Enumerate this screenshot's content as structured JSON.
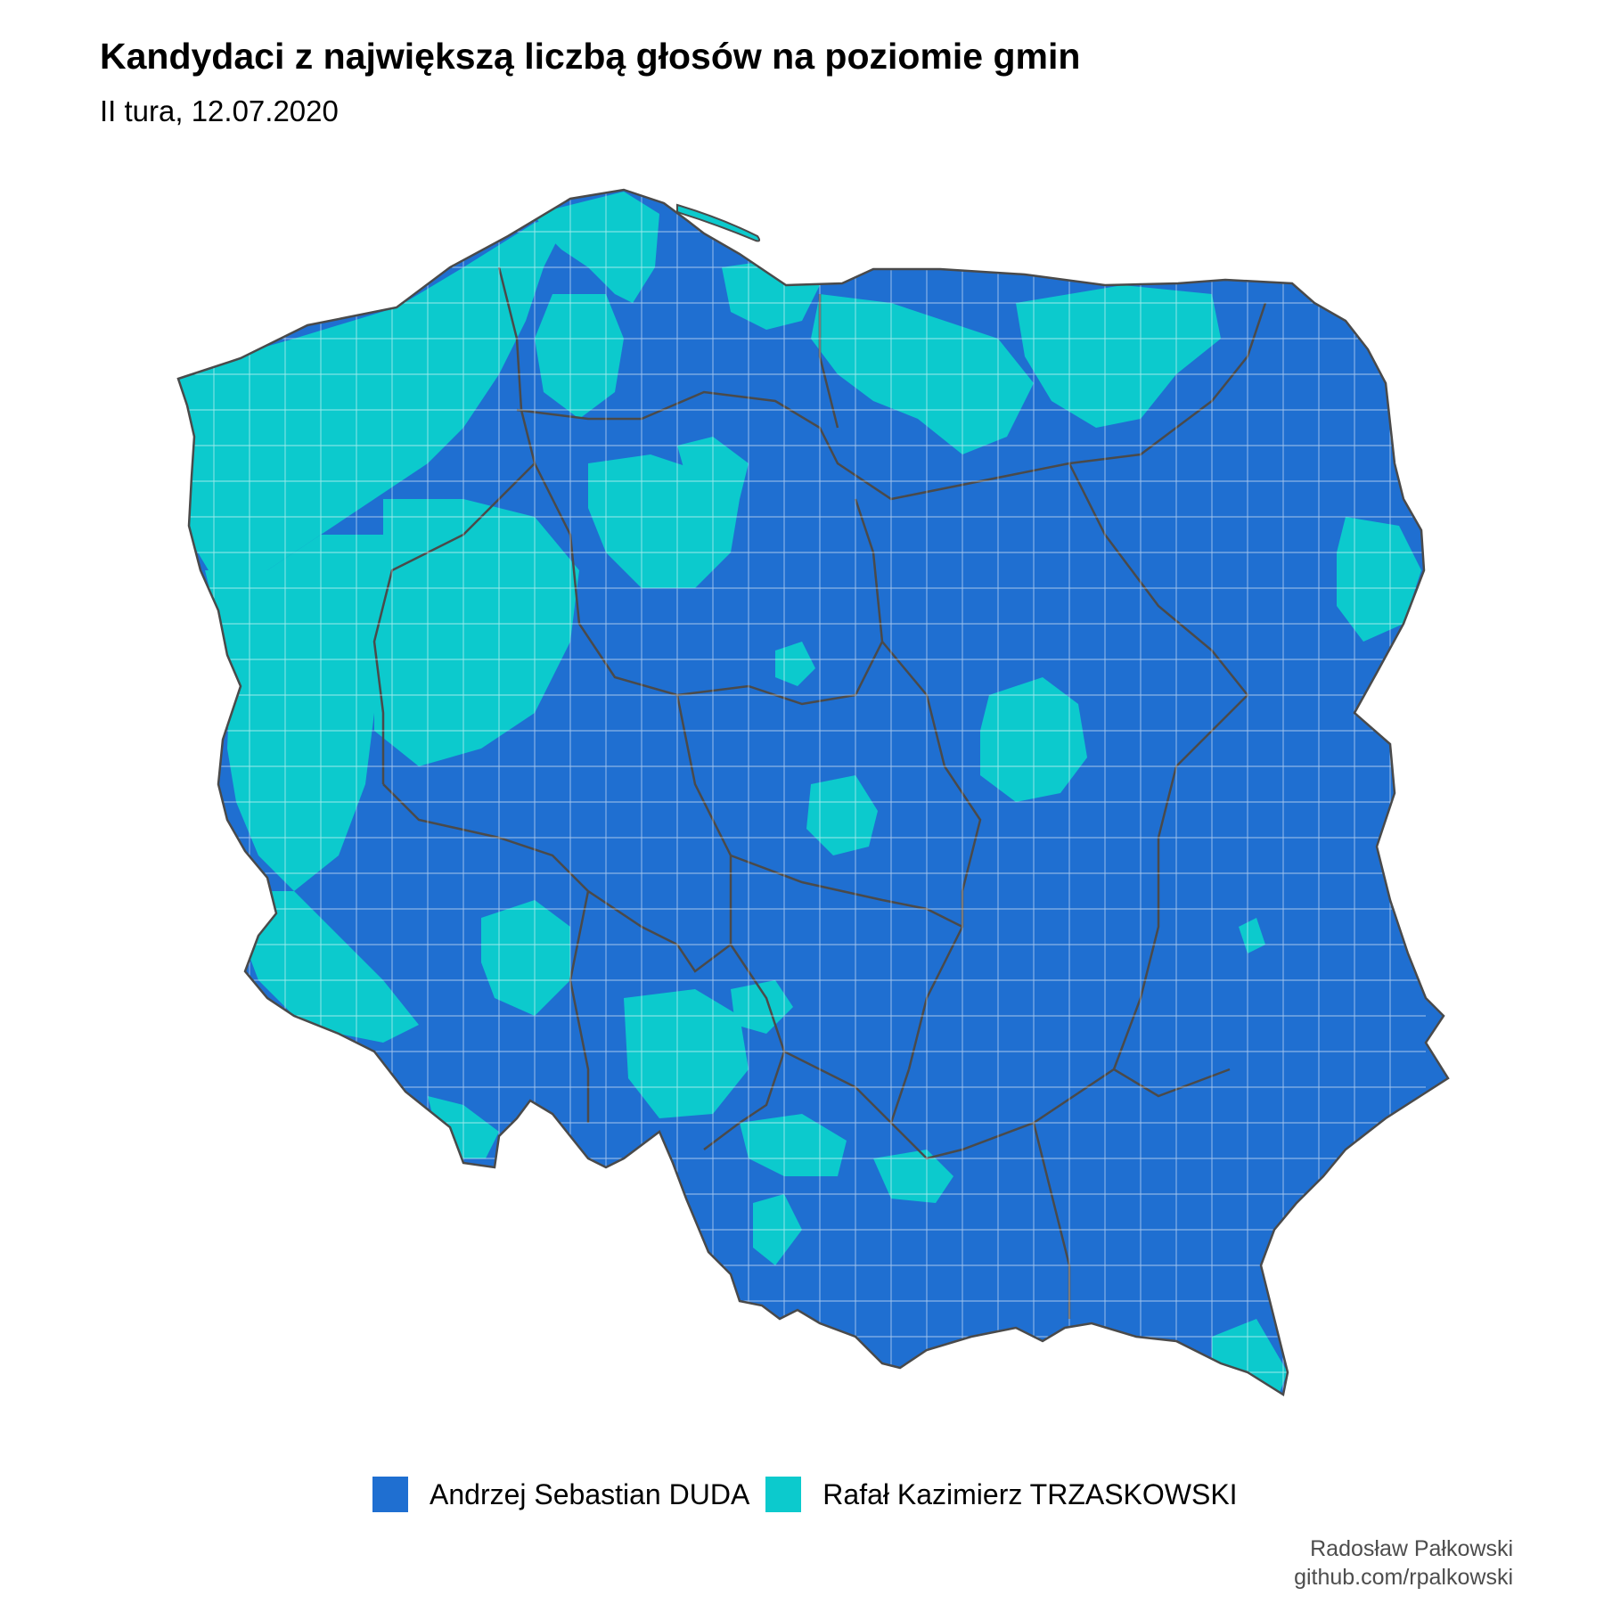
{
  "title": "Kandydaci z największą liczbą głosów na poziomie gmin",
  "subtitle": "II tura, 12.07.2020",
  "colors": {
    "duda": "#1f6fd1",
    "trzaskowski": "#0ccacd",
    "border_voivodeship": "#4a4a4a",
    "border_gmina": "#ffffff"
  },
  "map": {
    "subject": "Poland — gminas (municipalities)",
    "fill_by": "winning candidate",
    "background_color": "#1f6fd1",
    "regions_icon": "poland-map-icon"
  },
  "legend": {
    "items": [
      {
        "label": "Andrzej Sebastian DUDA",
        "color": "#1f6fd1"
      },
      {
        "label": "Rafał Kazimierz TRZASKOWSKI",
        "color": "#0ccacd"
      }
    ]
  },
  "credit": {
    "author": "Radosław Pałkowski",
    "url": "github.com/rpalkowski"
  }
}
